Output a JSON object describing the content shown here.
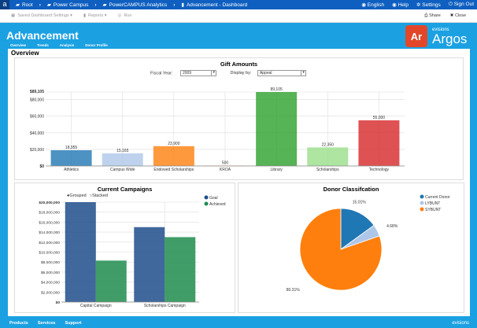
{
  "topbar": {
    "logo": "a",
    "crumbs": [
      "Root",
      "Power Campus",
      "PowerCAMPUS Analytics",
      "Advancement - Dashboard"
    ],
    "right": [
      "English",
      "Help",
      "Settings",
      "Sign Out"
    ]
  },
  "toolbar": {
    "saved": "Saved Dashboard Settings ▾",
    "reports": "Reports ▾",
    "run": "Run",
    "share": "Share",
    "close": "Close"
  },
  "header": {
    "title": "Advancement",
    "tabs": [
      "Overview",
      "Trends",
      "Analysis",
      "Donor Profile"
    ],
    "brand_small": "evisions",
    "brand_big": "Argos",
    "brand_mark": "Ar"
  },
  "main": {
    "heading": "Overview"
  },
  "gift": {
    "title": "Gift Amounts",
    "fy_label": "Fiscal Year:",
    "fy_value": "2009",
    "display_label": "Display by:",
    "display_value": "Appeal"
  },
  "campaign": {
    "title": "Current Campaigns",
    "grouped": "Grouped",
    "stacked": "Stacked"
  },
  "donor": {
    "title": "Donor Classifcation"
  },
  "footer": {
    "items": [
      "Products",
      "Services",
      "Support"
    ],
    "brand": "evisions"
  },
  "chart_data": [
    {
      "type": "bar",
      "title": "Gift Amounts",
      "categories": [
        "Athletics",
        "Campus Wide",
        "Endowed Scholarships",
        "KROA",
        "Library",
        "Scholarships",
        "Technology"
      ],
      "values": [
        18955,
        15165,
        23900,
        500,
        89105,
        22350,
        55000
      ],
      "data_labels": [
        "18,955",
        "15,165",
        "23,900",
        "500",
        "89,105",
        "22,350",
        "55,000"
      ],
      "colors": [
        "#1f77b4",
        "#aec7e8",
        "#ff7f0e",
        "#ffbb78",
        "#2ca02c",
        "#98df8a",
        "#d62728"
      ],
      "ylim": [
        0,
        89105
      ],
      "yticks": [
        "$0",
        "$20,000",
        "$40,000",
        "$60,000",
        "$80,000",
        "$89,105"
      ],
      "ytick_values": [
        0,
        20000,
        40000,
        60000,
        80000,
        89105
      ],
      "grid": true
    },
    {
      "type": "bar",
      "title": "Current Campaigns",
      "categories": [
        "Capital Campaign",
        "Scholarships Campaign"
      ],
      "series": [
        {
          "name": "Goal",
          "values": [
            20000000,
            15000000
          ],
          "color": "#1f4e8c"
        },
        {
          "name": "Achieved",
          "values": [
            8300000,
            13000000
          ],
          "color": "#1e8c4e"
        }
      ],
      "ylim": [
        0,
        20000000
      ],
      "yticks": [
        "$0",
        "$2,000,000",
        "$4,000,000",
        "$6,000,000",
        "$8,000,000",
        "$10,000,000",
        "$12,000,000",
        "$14,000,000",
        "$16,000,000",
        "$18,000,000",
        "$20,000,000"
      ],
      "legend": "right",
      "grid": true
    },
    {
      "type": "pie",
      "title": "Donor Classifcation",
      "labels": [
        "Current Donor",
        "LYBUNT",
        "SYBUNT"
      ],
      "values": [
        15.01,
        4.68,
        80.31
      ],
      "data_labels": [
        "15.01%",
        "4.68%",
        "80.31%"
      ],
      "colors": [
        "#1f77b4",
        "#aec7e8",
        "#ff7f0e"
      ],
      "legend": "top-right"
    }
  ]
}
